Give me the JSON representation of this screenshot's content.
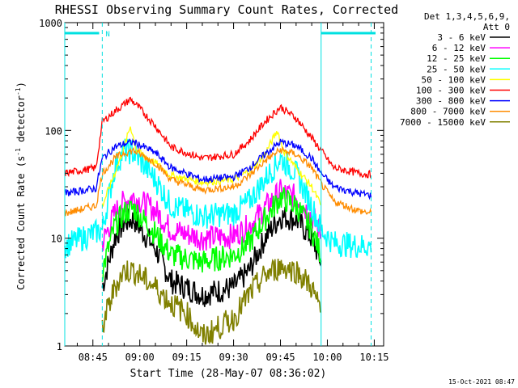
{
  "chart_data": {
    "type": "line",
    "title": "RHESSI Observing Summary Count Rates, Corrected",
    "xlabel": "Start Time (28-May-07 08:36:02)",
    "ylabel_main": "Corrected Count Rate (s",
    "ylabel_sup1": "-1",
    "ylabel_mid": " detector",
    "ylabel_sup2": "-1",
    "ylabel_end": ")",
    "yscale": "log",
    "ylim": [
      1,
      1000
    ],
    "x_range_minutes": [
      "08:36",
      "10:18"
    ],
    "x_ticks": [
      "08:45",
      "09:00",
      "09:15",
      "09:30",
      "09:45",
      "10:00",
      "10:15"
    ],
    "y_ticks": [
      "1",
      "10",
      "100",
      "1000"
    ],
    "grid": false,
    "legend_position": "right",
    "legend_header": [
      "Det 1,3,4,5,6,9,",
      "Att 0"
    ],
    "timestamp": "15-Oct-2021 08:47",
    "night_marker_label": "N",
    "series": [
      {
        "name": "3 - 6 keV",
        "color": "#000000",
        "x": [
          "08:48",
          "08:52",
          "08:55",
          "08:58",
          "09:05",
          "09:10",
          "09:20",
          "09:30",
          "09:35",
          "09:40",
          "09:45",
          "09:50",
          "09:55",
          "09:58"
        ],
        "values": [
          3.5,
          10,
          14,
          15,
          8,
          4,
          3,
          3.5,
          5,
          10,
          16,
          15,
          10,
          6
        ]
      },
      {
        "name": "6 - 12 keV",
        "color": "#ff00ff",
        "x": [
          "08:48",
          "08:52",
          "08:55",
          "08:58",
          "09:05",
          "09:10",
          "09:20",
          "09:30",
          "09:35",
          "09:40",
          "09:45",
          "09:50",
          "09:55",
          "09:58"
        ],
        "values": [
          9,
          17,
          22,
          24,
          18,
          12,
          10,
          10.5,
          13,
          19,
          27,
          24,
          16,
          11
        ]
      },
      {
        "name": "12 - 25 keV",
        "color": "#00ff00",
        "x": [
          "08:48",
          "08:52",
          "08:55",
          "08:58",
          "09:05",
          "09:10",
          "09:20",
          "09:30",
          "09:35",
          "09:40",
          "09:45",
          "09:50",
          "09:55",
          "09:58"
        ],
        "values": [
          5,
          13,
          17,
          19,
          11,
          7,
          6,
          7,
          9,
          15,
          24,
          20,
          12,
          7
        ]
      },
      {
        "name": "25 - 50 keV",
        "color": "#00ffff",
        "x": [
          "08:36",
          "08:48",
          "08:52",
          "08:55",
          "08:58",
          "09:05",
          "09:10",
          "09:20",
          "09:30",
          "09:35",
          "09:40",
          "09:45",
          "09:50",
          "09:55",
          "09:58",
          "10:02",
          "10:10",
          "10:14"
        ],
        "values": [
          8.5,
          12,
          45,
          65,
          62,
          35,
          20,
          16,
          17,
          22,
          35,
          55,
          40,
          20,
          12,
          9,
          8.5,
          8.5
        ]
      },
      {
        "name": "50 - 100 keV",
        "color": "#ffff00",
        "x": [
          "08:48",
          "08:52",
          "08:55",
          "08:57",
          "08:59",
          "09:05",
          "09:10",
          "09:20",
          "09:30",
          "09:35",
          "09:40",
          "09:44",
          "09:46",
          "09:50",
          "09:55",
          "09:58"
        ],
        "values": [
          20,
          40,
          70,
          110,
          65,
          50,
          38,
          33,
          35,
          42,
          60,
          100,
          65,
          45,
          30,
          20
        ]
      },
      {
        "name": "100 - 300 keV",
        "color": "#ff0000",
        "x": [
          "08:36",
          "08:46",
          "08:48",
          "08:52",
          "08:55",
          "08:57",
          "09:00",
          "09:05",
          "09:10",
          "09:20",
          "09:30",
          "09:35",
          "09:40",
          "09:45",
          "09:50",
          "09:55",
          "09:58",
          "10:02",
          "10:10",
          "10:14"
        ],
        "values": [
          40,
          45,
          120,
          150,
          175,
          195,
          160,
          110,
          70,
          55,
          60,
          80,
          120,
          165,
          130,
          85,
          65,
          45,
          40,
          39
        ]
      },
      {
        "name": "300 - 800 keV",
        "color": "#0000ff",
        "x": [
          "08:36",
          "08:46",
          "08:48",
          "08:52",
          "08:55",
          "08:58",
          "09:05",
          "09:10",
          "09:20",
          "09:30",
          "09:35",
          "09:40",
          "09:45",
          "09:50",
          "09:55",
          "09:58",
          "10:02",
          "10:10",
          "10:14"
        ],
        "values": [
          26,
          29,
          55,
          70,
          75,
          78,
          62,
          45,
          35,
          37,
          45,
          60,
          78,
          72,
          55,
          40,
          30,
          26,
          25
        ]
      },
      {
        "name": "800 - 7000 keV",
        "color": "#ff8c00",
        "x": [
          "08:36",
          "08:46",
          "08:48",
          "08:52",
          "08:55",
          "08:58",
          "09:05",
          "09:10",
          "09:20",
          "09:30",
          "09:35",
          "09:40",
          "09:45",
          "09:50",
          "09:55",
          "09:58",
          "10:02",
          "10:10",
          "10:14"
        ],
        "values": [
          17,
          20,
          40,
          55,
          62,
          65,
          50,
          35,
          28,
          30,
          38,
          52,
          66,
          60,
          45,
          32,
          22,
          18,
          17
        ]
      },
      {
        "name": "7000 - 15000 keV",
        "color": "#808000",
        "x": [
          "08:48",
          "08:52",
          "08:55",
          "08:58",
          "09:05",
          "09:10",
          "09:15",
          "09:20",
          "09:30",
          "09:35",
          "09:40",
          "09:45",
          "09:50",
          "09:55",
          "09:58"
        ],
        "values": [
          1.5,
          3.5,
          5,
          5,
          3.5,
          2.5,
          2,
          1.2,
          1.8,
          3,
          4.5,
          5.5,
          5,
          3.5,
          2
        ]
      }
    ]
  }
}
